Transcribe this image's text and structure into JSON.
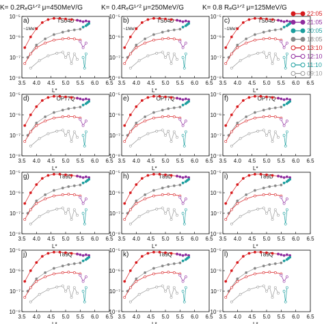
{
  "column_titles": [
    "K= 0.2RₑG¹ᐟ²   μ=450MeV/G",
    "K= 0.4RₑG¹ᐟ²   μ=250MeV/G",
    "K= 0.8 RₑG¹ᐟ²   μ=125MeV/G"
  ],
  "energy_note": "~1MeV",
  "legend": [
    {
      "label": "22:05",
      "color": "#d7191c",
      "filled": true
    },
    {
      "label": "21:05",
      "color": "#8e2a9e",
      "filled": true
    },
    {
      "label": "20:05",
      "color": "#1b9e9e",
      "filled": true
    },
    {
      "label": "18:05",
      "color": "#888888",
      "filled": true
    },
    {
      "label": "13:10",
      "color": "#d7191c",
      "filled": false
    },
    {
      "label": "12:10",
      "color": "#8e2a9e",
      "filled": false
    },
    {
      "label": "11:10",
      "color": "#1b9e9e",
      "filled": false
    },
    {
      "label": "09:10",
      "color": "#999999",
      "filled": false
    }
  ],
  "chart_data": {
    "type": "scatter",
    "grid_rows": 4,
    "grid_cols": 3,
    "xlabel": "L*",
    "xlim": [
      3.5,
      6.5
    ],
    "ylim": [
      1e-08,
      1e-05
    ],
    "log_y": true,
    "x_ticks": [
      "3.5",
      "4.0",
      "4.5",
      "5.0",
      "5.5",
      "6.0",
      "6.5"
    ],
    "y_ticks": [
      "10⁻⁸",
      "10⁻⁷",
      "10⁻⁶",
      "10⁻⁵"
    ],
    "panels": [
      {
        "label": "a)",
        "model": "TS04D"
      },
      {
        "label": "b)",
        "model": "TS04D"
      },
      {
        "label": "c)",
        "model": "TS04D"
      },
      {
        "label": "d)",
        "model": "OP77Q"
      },
      {
        "label": "e)",
        "model": "OP77Q"
      },
      {
        "label": "f)",
        "model": "OP77Q"
      },
      {
        "label": "g)",
        "model": "T89D"
      },
      {
        "label": "h)",
        "model": "T89D"
      },
      {
        "label": "i)",
        "model": "T89D"
      },
      {
        "label": "j)",
        "model": "T89Q"
      },
      {
        "label": "k)",
        "model": "T89Q"
      },
      {
        "label": "l)",
        "model": "T89Q"
      }
    ],
    "series": [
      {
        "name": "22:05",
        "x": [
          3.6,
          3.8,
          4.0,
          4.2,
          4.4,
          4.6,
          4.8,
          5.0,
          5.2,
          5.4
        ],
        "y": [
          3e-07,
          1e-06,
          2.5e-06,
          5e-06,
          7e-06,
          8e-06,
          8e-06,
          7.5e-06,
          7e-06,
          6.5e-06
        ]
      },
      {
        "name": "21:05",
        "x": [
          5.4,
          5.5,
          5.6,
          5.7,
          5.8
        ],
        "y": [
          6.5e-06,
          6e-06,
          5.5e-06,
          6e-06,
          5.5e-06
        ]
      },
      {
        "name": "20:05",
        "x": [
          5.6,
          5.7,
          5.75,
          5.8
        ],
        "y": [
          3e-06,
          3.5e-06,
          4e-06,
          4.5e-06
        ]
      },
      {
        "name": "18:05",
        "x": [
          3.7,
          4.0,
          4.3,
          4.6,
          4.9,
          5.1,
          5.3,
          5.5
        ],
        "y": [
          1e-07,
          4e-07,
          8e-07,
          1.3e-06,
          1.7e-06,
          2e-06,
          2.2e-06,
          2.4e-06
        ]
      },
      {
        "name": "13:10",
        "x": [
          3.6,
          3.8,
          4.0,
          4.3,
          4.6,
          4.9,
          5.1,
          5.3,
          5.5
        ],
        "y": [
          5e-08,
          1.5e-07,
          3e-07,
          5e-07,
          7e-07,
          8e-07,
          8.5e-07,
          8e-07,
          7e-07
        ]
      },
      {
        "name": "12:10",
        "x": [
          5.5,
          5.6,
          5.7
        ],
        "y": [
          6e-07,
          3e-07,
          5e-07
        ]
      },
      {
        "name": "11:10",
        "x": [
          5.6,
          5.65,
          5.7
        ],
        "y": [
          1e-07,
          3e-08,
          1.5e-07
        ]
      },
      {
        "name": "09:10",
        "x": [
          3.8,
          4.1,
          4.4,
          4.7,
          4.9,
          5.0,
          5.1,
          5.2,
          5.3,
          5.4
        ],
        "y": [
          3e-08,
          7e-08,
          1.2e-07,
          1.6e-07,
          1.8e-07,
          1e-07,
          1.6e-07,
          5e-08,
          1.5e-07,
          8e-08
        ]
      }
    ]
  }
}
